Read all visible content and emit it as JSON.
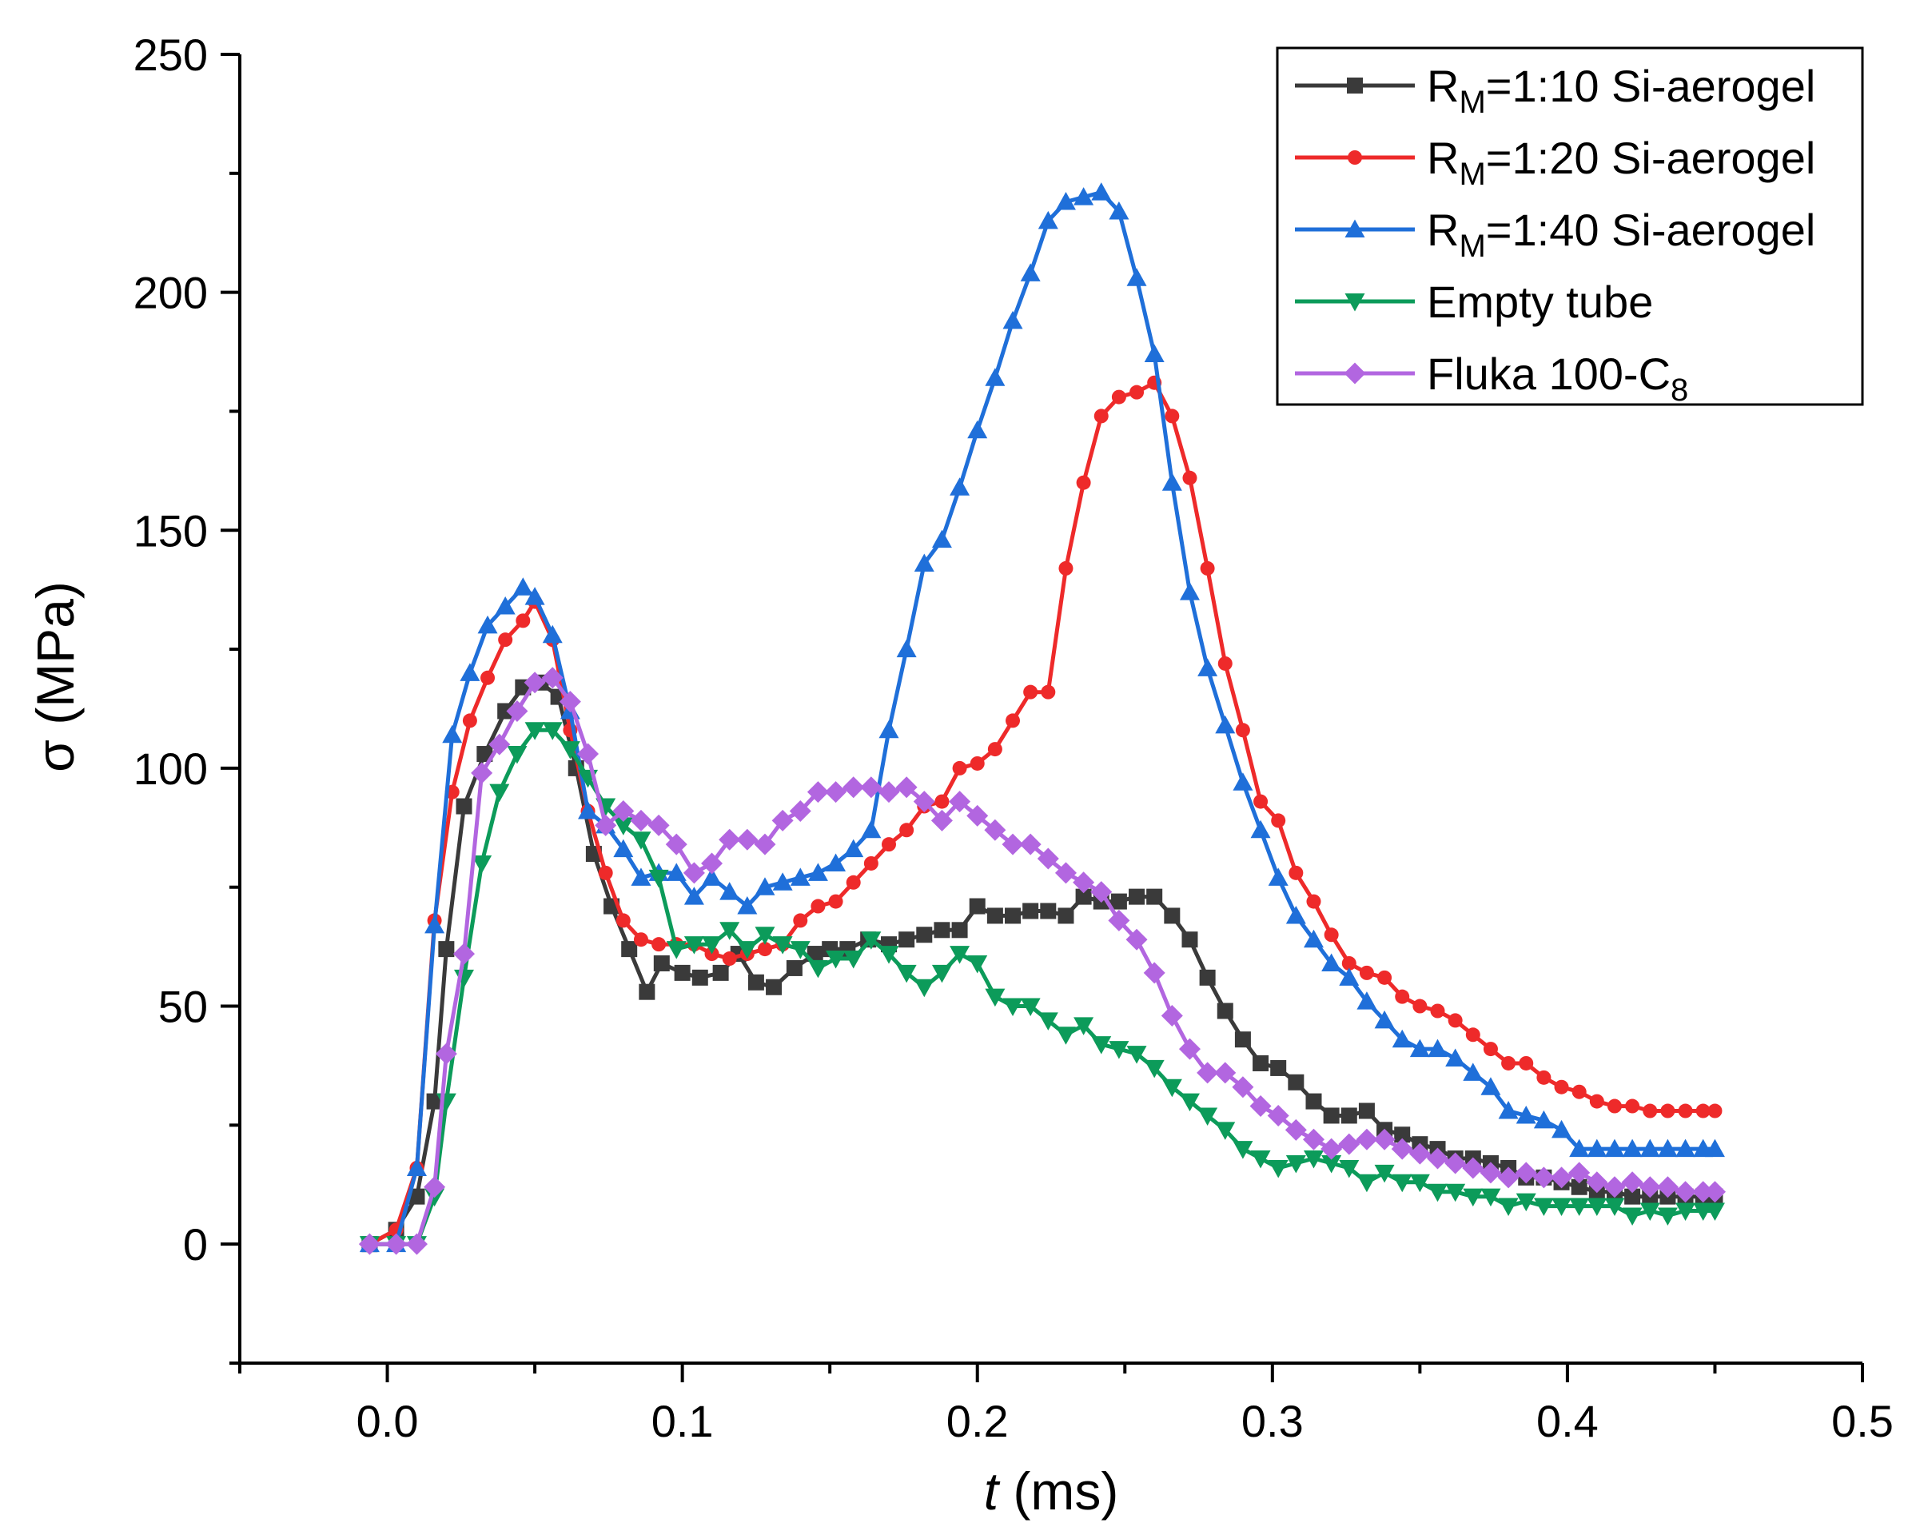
{
  "chart_data": {
    "type": "line",
    "title": "",
    "xlabel_italic": "t",
    "xlabel_rest": " (ms)",
    "ylabel": "σ (MPa)",
    "xlim": [
      -0.05,
      0.5
    ],
    "ylim": [
      -25,
      250
    ],
    "xticks": [
      0.0,
      0.1,
      0.2,
      0.3,
      0.4,
      0.5
    ],
    "xtick_labels": [
      "0.0",
      "0.1",
      "0.2",
      "0.3",
      "0.4",
      "0.5"
    ],
    "yticks": [
      0,
      50,
      100,
      150,
      200,
      250
    ],
    "ytick_labels": [
      "0",
      "50",
      "100",
      "150",
      "200",
      "250"
    ],
    "legend_position": "top-right",
    "series": [
      {
        "name": "RM=1:10 Si-aerogel",
        "legend": {
          "main": "R",
          "sub": "M",
          "rest": "=1:10 Si-aerogel"
        },
        "color": "#3a3a3a",
        "marker": "square",
        "x": [
          -0.006,
          0.003,
          0.01,
          0.016,
          0.02,
          0.026,
          0.033,
          0.04,
          0.046,
          0.052,
          0.058,
          0.064,
          0.07,
          0.076,
          0.082,
          0.088,
          0.093,
          0.1,
          0.106,
          0.113,
          0.119,
          0.125,
          0.131,
          0.138,
          0.145,
          0.15,
          0.156,
          0.163,
          0.17,
          0.176,
          0.182,
          0.188,
          0.194,
          0.2,
          0.206,
          0.212,
          0.218,
          0.224,
          0.23,
          0.236,
          0.242,
          0.248,
          0.254,
          0.26,
          0.266,
          0.272,
          0.278,
          0.284,
          0.29,
          0.296,
          0.302,
          0.308,
          0.314,
          0.32,
          0.326,
          0.332,
          0.338,
          0.344,
          0.35,
          0.356,
          0.362,
          0.368,
          0.374,
          0.38,
          0.386,
          0.392,
          0.398,
          0.404,
          0.41,
          0.416,
          0.422,
          0.428,
          0.434,
          0.44,
          0.446,
          0.45
        ],
        "y": [
          0,
          3,
          10,
          30,
          62,
          92,
          103,
          112,
          117,
          118,
          115,
          100,
          82,
          71,
          62,
          53,
          59,
          57,
          56,
          57,
          61,
          55,
          54,
          58,
          61,
          62,
          62,
          64,
          63,
          64,
          65,
          66,
          66,
          71,
          69,
          69,
          70,
          70,
          69,
          73,
          72,
          72,
          73,
          73,
          69,
          64,
          56,
          49,
          43,
          38,
          37,
          34,
          30,
          27,
          27,
          28,
          24,
          23,
          21,
          20,
          18,
          18,
          17,
          16,
          14,
          14,
          13,
          12,
          11,
          11,
          10,
          10,
          10,
          10,
          10,
          10
        ]
      },
      {
        "name": "RM=1:20 Si-aerogel",
        "legend": {
          "main": "R",
          "sub": "M",
          "rest": "=1:20 Si-aerogel"
        },
        "color": "#ee2a2a",
        "marker": "circle",
        "x": [
          -0.006,
          0.003,
          0.01,
          0.016,
          0.022,
          0.028,
          0.034,
          0.04,
          0.046,
          0.05,
          0.056,
          0.062,
          0.068,
          0.074,
          0.08,
          0.086,
          0.092,
          0.098,
          0.104,
          0.11,
          0.116,
          0.122,
          0.128,
          0.134,
          0.14,
          0.146,
          0.152,
          0.158,
          0.164,
          0.17,
          0.176,
          0.182,
          0.188,
          0.194,
          0.2,
          0.206,
          0.212,
          0.218,
          0.224,
          0.23,
          0.236,
          0.242,
          0.248,
          0.254,
          0.26,
          0.266,
          0.272,
          0.278,
          0.284,
          0.29,
          0.296,
          0.302,
          0.308,
          0.314,
          0.32,
          0.326,
          0.332,
          0.338,
          0.344,
          0.35,
          0.356,
          0.362,
          0.368,
          0.374,
          0.38,
          0.386,
          0.392,
          0.398,
          0.404,
          0.41,
          0.416,
          0.422,
          0.428,
          0.434,
          0.44,
          0.446,
          0.45
        ],
        "y": [
          0,
          3,
          16,
          68,
          95,
          110,
          119,
          127,
          131,
          135,
          127,
          108,
          91,
          78,
          68,
          64,
          63,
          63,
          63,
          61,
          60,
          61,
          62,
          63,
          68,
          71,
          72,
          76,
          80,
          84,
          87,
          92,
          93,
          100,
          101,
          104,
          110,
          116,
          116,
          142,
          160,
          174,
          178,
          179,
          181,
          174,
          161,
          142,
          122,
          108,
          93,
          89,
          78,
          72,
          65,
          59,
          57,
          56,
          52,
          50,
          49,
          47,
          44,
          41,
          38,
          38,
          35,
          33,
          32,
          30,
          29,
          29,
          28,
          28,
          28,
          28,
          28
        ]
      },
      {
        "name": "RM=1:40 Si-aerogel",
        "legend": {
          "main": "R",
          "sub": "M",
          "rest": "=1:40 Si-aerogel"
        },
        "color": "#1f6fd9",
        "marker": "triangle-up",
        "x": [
          -0.006,
          0.003,
          0.01,
          0.016,
          0.022,
          0.028,
          0.034,
          0.04,
          0.046,
          0.05,
          0.056,
          0.062,
          0.068,
          0.074,
          0.08,
          0.086,
          0.092,
          0.098,
          0.104,
          0.11,
          0.116,
          0.122,
          0.128,
          0.134,
          0.14,
          0.146,
          0.152,
          0.158,
          0.164,
          0.17,
          0.176,
          0.182,
          0.188,
          0.194,
          0.2,
          0.206,
          0.212,
          0.218,
          0.224,
          0.23,
          0.236,
          0.242,
          0.248,
          0.254,
          0.26,
          0.266,
          0.272,
          0.278,
          0.284,
          0.29,
          0.296,
          0.302,
          0.308,
          0.314,
          0.32,
          0.326,
          0.332,
          0.338,
          0.344,
          0.35,
          0.356,
          0.362,
          0.368,
          0.374,
          0.38,
          0.386,
          0.392,
          0.398,
          0.404,
          0.41,
          0.416,
          0.422,
          0.428,
          0.434,
          0.44,
          0.446,
          0.45
        ],
        "y": [
          0,
          0,
          16,
          67,
          107,
          120,
          130,
          134,
          138,
          136,
          128,
          112,
          91,
          88,
          83,
          77,
          78,
          78,
          73,
          77,
          74,
          71,
          75,
          76,
          77,
          78,
          80,
          83,
          87,
          108,
          125,
          143,
          148,
          159,
          171,
          182,
          194,
          204,
          215,
          219,
          220,
          221,
          217,
          203,
          187,
          160,
          137,
          121,
          109,
          97,
          87,
          77,
          69,
          64,
          59,
          56,
          51,
          47,
          43,
          41,
          41,
          39,
          36,
          33,
          28,
          27,
          26,
          24,
          20,
          20,
          20,
          20,
          20,
          20,
          20,
          20,
          20
        ]
      },
      {
        "name": "Empty tube",
        "legend": {
          "main": "Empty tube",
          "sub": "",
          "rest": ""
        },
        "color": "#0c9b5a",
        "marker": "triangle-down",
        "x": [
          -0.006,
          0.003,
          0.01,
          0.016,
          0.02,
          0.026,
          0.032,
          0.038,
          0.044,
          0.05,
          0.056,
          0.062,
          0.068,
          0.074,
          0.08,
          0.086,
          0.092,
          0.098,
          0.104,
          0.11,
          0.116,
          0.122,
          0.128,
          0.134,
          0.14,
          0.146,
          0.152,
          0.158,
          0.164,
          0.17,
          0.176,
          0.182,
          0.188,
          0.194,
          0.2,
          0.206,
          0.212,
          0.218,
          0.224,
          0.23,
          0.236,
          0.242,
          0.248,
          0.254,
          0.26,
          0.266,
          0.272,
          0.278,
          0.284,
          0.29,
          0.296,
          0.302,
          0.308,
          0.314,
          0.32,
          0.326,
          0.332,
          0.338,
          0.344,
          0.35,
          0.356,
          0.362,
          0.368,
          0.374,
          0.38,
          0.386,
          0.392,
          0.398,
          0.404,
          0.41,
          0.416,
          0.422,
          0.428,
          0.434,
          0.44,
          0.446,
          0.45
        ],
        "y": [
          0,
          0,
          0,
          10,
          30,
          56,
          80,
          95,
          103,
          108,
          108,
          104,
          98,
          92,
          88,
          85,
          77,
          62,
          63,
          63,
          66,
          62,
          65,
          63,
          62,
          58,
          60,
          60,
          64,
          61,
          57,
          54,
          57,
          61,
          59,
          52,
          50,
          50,
          47,
          44,
          46,
          42,
          41,
          40,
          37,
          33,
          30,
          27,
          24,
          20,
          18,
          16,
          17,
          18,
          17,
          16,
          13,
          15,
          13,
          13,
          11,
          11,
          10,
          10,
          8,
          9,
          8,
          8,
          8,
          8,
          8,
          6,
          7,
          6,
          7,
          7,
          7
        ]
      },
      {
        "name": "Fluka 100-C8",
        "legend": {
          "main": "Fluka 100-C",
          "sub": "8",
          "rest": ""
        },
        "color": "#b266e0",
        "marker": "diamond",
        "x": [
          -0.006,
          0.003,
          0.01,
          0.016,
          0.02,
          0.026,
          0.032,
          0.038,
          0.044,
          0.05,
          0.056,
          0.062,
          0.068,
          0.074,
          0.08,
          0.086,
          0.092,
          0.098,
          0.104,
          0.11,
          0.116,
          0.122,
          0.128,
          0.134,
          0.14,
          0.146,
          0.152,
          0.158,
          0.164,
          0.17,
          0.176,
          0.182,
          0.188,
          0.194,
          0.2,
          0.206,
          0.212,
          0.218,
          0.224,
          0.23,
          0.236,
          0.242,
          0.248,
          0.254,
          0.26,
          0.266,
          0.272,
          0.278,
          0.284,
          0.29,
          0.296,
          0.302,
          0.308,
          0.314,
          0.32,
          0.326,
          0.332,
          0.338,
          0.344,
          0.35,
          0.356,
          0.362,
          0.368,
          0.374,
          0.38,
          0.386,
          0.392,
          0.398,
          0.404,
          0.41,
          0.416,
          0.422,
          0.428,
          0.434,
          0.44,
          0.446,
          0.45
        ],
        "y": [
          0,
          0,
          0,
          12,
          40,
          61,
          99,
          105,
          112,
          118,
          119,
          114,
          103,
          88,
          91,
          89,
          88,
          84,
          78,
          80,
          85,
          85,
          84,
          89,
          91,
          95,
          95,
          96,
          96,
          95,
          96,
          93,
          89,
          93,
          90,
          87,
          84,
          84,
          81,
          78,
          76,
          74,
          68,
          64,
          57,
          48,
          41,
          36,
          36,
          33,
          29,
          27,
          24,
          22,
          20,
          21,
          22,
          22,
          20,
          19,
          18,
          17,
          16,
          15,
          14,
          15,
          14,
          14,
          15,
          13,
          12,
          13,
          12,
          12,
          11,
          11,
          11
        ]
      }
    ]
  }
}
